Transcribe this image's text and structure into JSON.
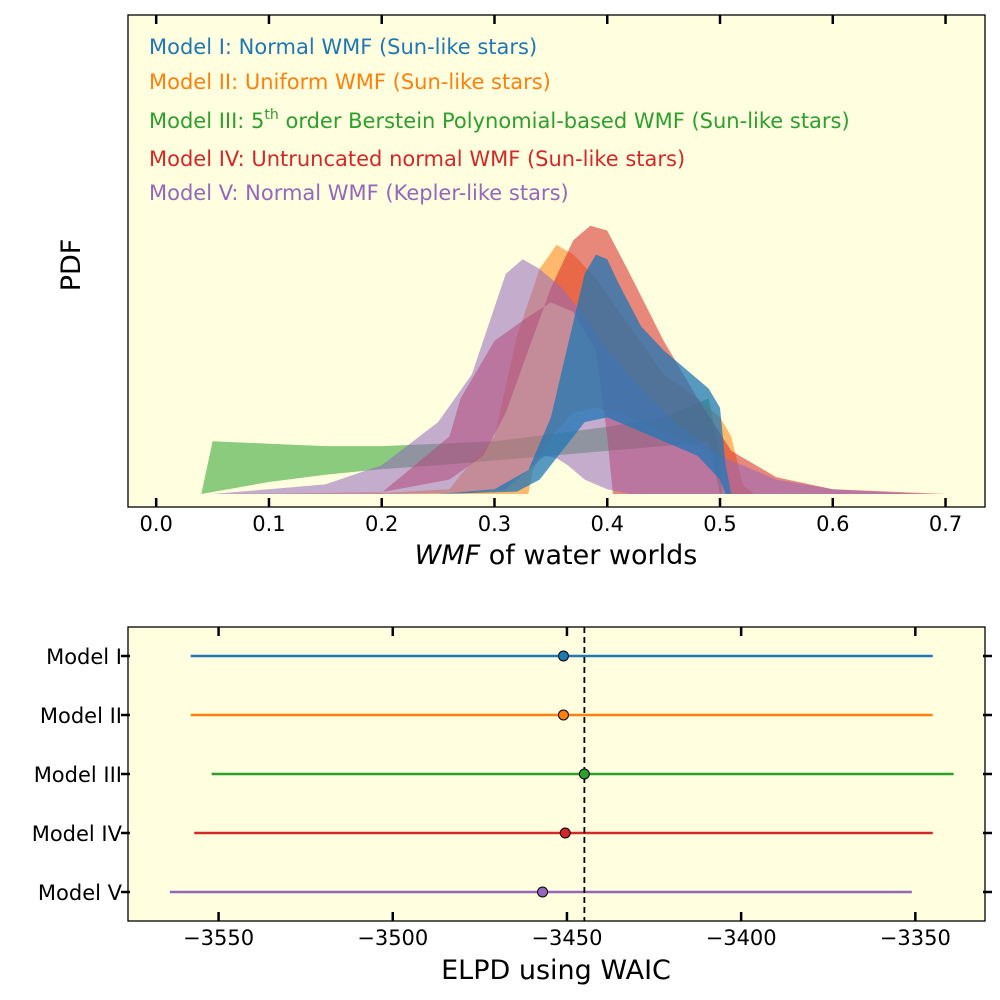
{
  "colors": {
    "background": "#ffffdf",
    "model_1": "#1f77b4",
    "model_2": "#ff7f0e",
    "model_3": "#2ca02c",
    "model_4": "#d62728",
    "model_5": "#9467bd"
  },
  "chart_data": [
    {
      "type": "area",
      "ylabel": "PDF",
      "xlabel": {
        "italic": "WMF",
        "rest": " of water worlds"
      },
      "xlim": [
        -0.025,
        0.735
      ],
      "ylim": [
        0,
        1.0
      ],
      "xticks": [
        "0.0",
        "0.1",
        "0.2",
        "0.3",
        "0.4",
        "0.5",
        "0.6",
        "0.7"
      ],
      "xtick_values": [
        0.0,
        0.1,
        0.2,
        0.3,
        0.4,
        0.5,
        0.6,
        0.7
      ],
      "legend": {
        "placement": "top-left",
        "entries": [
          {
            "text": "Model I: Normal WMF (Sun-like stars)",
            "color_key": "model_1"
          },
          {
            "text": "Model II: Uniform WMF (Sun-like stars)",
            "color_key": "model_2"
          },
          {
            "pre": "Model III: 5",
            "sup": "th",
            "post": " order Berstein Polynomial-based WMF (Sun-like stars)",
            "color_key": "model_3"
          },
          {
            "text": "Model IV: Untruncated normal WMF (Sun-like stars)",
            "color_key": "model_4"
          },
          {
            "text": "Model V: Normal WMF (Kepler-like stars)",
            "color_key": "model_5"
          }
        ]
      },
      "series": [
        {
          "color_key": "model_3",
          "opacity": 0.55,
          "upper": [
            [
              0.04,
              0.0
            ],
            [
              0.05,
              0.11
            ],
            [
              0.1,
              0.105
            ],
            [
              0.15,
              0.1
            ],
            [
              0.2,
              0.1
            ],
            [
              0.25,
              0.105
            ],
            [
              0.3,
              0.11
            ],
            [
              0.35,
              0.125
            ],
            [
              0.4,
              0.14
            ],
            [
              0.45,
              0.16
            ],
            [
              0.49,
              0.2
            ],
            [
              0.5,
              0.08
            ],
            [
              0.502,
              0.0
            ]
          ],
          "lower": [
            [
              0.04,
              0.0
            ],
            [
              0.1,
              0.025
            ],
            [
              0.15,
              0.04
            ],
            [
              0.2,
              0.052
            ],
            [
              0.25,
              0.06
            ],
            [
              0.3,
              0.07
            ],
            [
              0.35,
              0.08
            ],
            [
              0.4,
              0.09
            ],
            [
              0.45,
              0.1
            ],
            [
              0.49,
              0.11
            ],
            [
              0.5,
              0.0
            ]
          ]
        },
        {
          "color_key": "model_2",
          "opacity": 0.55,
          "upper": [
            [
              0.05,
              0.0
            ],
            [
              0.2,
              0.002
            ],
            [
              0.26,
              0.01
            ],
            [
              0.27,
              0.04
            ],
            [
              0.3,
              0.12
            ],
            [
              0.32,
              0.33
            ],
            [
              0.34,
              0.47
            ],
            [
              0.355,
              0.52
            ],
            [
              0.37,
              0.5
            ],
            [
              0.39,
              0.45
            ],
            [
              0.42,
              0.35
            ],
            [
              0.45,
              0.25
            ],
            [
              0.48,
              0.2
            ],
            [
              0.5,
              0.16
            ],
            [
              0.51,
              0.12
            ],
            [
              0.52,
              0.02
            ],
            [
              0.53,
              0.0
            ]
          ],
          "lower": [
            [
              0.05,
              0.0
            ],
            [
              0.25,
              0.0
            ],
            [
              0.3,
              0.0
            ],
            [
              0.33,
              0.0
            ],
            [
              0.334,
              0.05
            ],
            [
              0.35,
              0.12
            ],
            [
              0.37,
              0.17
            ],
            [
              0.39,
              0.18
            ],
            [
              0.42,
              0.16
            ],
            [
              0.45,
              0.13
            ],
            [
              0.48,
              0.1
            ],
            [
              0.5,
              0.08
            ],
            [
              0.51,
              0.0
            ]
          ]
        },
        {
          "color_key": "model_4",
          "opacity": 0.55,
          "upper": [
            [
              0.1,
              0.0
            ],
            [
              0.2,
              0.004
            ],
            [
              0.26,
              0.03
            ],
            [
              0.29,
              0.08
            ],
            [
              0.31,
              0.17
            ],
            [
              0.33,
              0.3
            ],
            [
              0.35,
              0.43
            ],
            [
              0.37,
              0.53
            ],
            [
              0.385,
              0.56
            ],
            [
              0.4,
              0.55
            ],
            [
              0.42,
              0.46
            ],
            [
              0.45,
              0.32
            ],
            [
              0.48,
              0.2
            ],
            [
              0.51,
              0.09
            ],
            [
              0.55,
              0.035
            ],
            [
              0.6,
              0.01
            ],
            [
              0.7,
              0.0
            ]
          ],
          "lower": [
            [
              0.1,
              0.0
            ],
            [
              0.2,
              0.003
            ],
            [
              0.26,
              0.12
            ],
            [
              0.27,
              0.2
            ],
            [
              0.3,
              0.32
            ],
            [
              0.33,
              0.37
            ],
            [
              0.35,
              0.4
            ],
            [
              0.37,
              0.38
            ],
            [
              0.39,
              0.3
            ],
            [
              0.4,
              0.12
            ],
            [
              0.405,
              0.0
            ],
            [
              0.5,
              0.0
            ],
            [
              0.7,
              0.0
            ]
          ]
        },
        {
          "color_key": "model_5",
          "opacity": 0.55,
          "upper": [
            [
              0.05,
              0.0
            ],
            [
              0.15,
              0.02
            ],
            [
              0.2,
              0.06
            ],
            [
              0.25,
              0.15
            ],
            [
              0.28,
              0.25
            ],
            [
              0.3,
              0.39
            ],
            [
              0.31,
              0.46
            ],
            [
              0.325,
              0.49
            ],
            [
              0.34,
              0.47
            ],
            [
              0.36,
              0.43
            ],
            [
              0.38,
              0.37
            ],
            [
              0.4,
              0.3
            ],
            [
              0.43,
              0.22
            ],
            [
              0.46,
              0.15
            ],
            [
              0.5,
              0.08
            ],
            [
              0.55,
              0.03
            ],
            [
              0.6,
              0.01
            ],
            [
              0.68,
              0.0
            ]
          ],
          "lower": [
            [
              0.05,
              0.0
            ],
            [
              0.2,
              0.0
            ],
            [
              0.28,
              0.002
            ],
            [
              0.31,
              0.01
            ],
            [
              0.33,
              0.05
            ],
            [
              0.345,
              0.08
            ],
            [
              0.355,
              0.075
            ],
            [
              0.365,
              0.06
            ],
            [
              0.38,
              0.03
            ],
            [
              0.4,
              0.01
            ],
            [
              0.42,
              0.0
            ],
            [
              0.68,
              0.0
            ]
          ]
        },
        {
          "color_key": "model_1",
          "opacity": 0.75,
          "upper": [
            [
              0.25,
              0.0
            ],
            [
              0.3,
              0.01
            ],
            [
              0.33,
              0.05
            ],
            [
              0.35,
              0.16
            ],
            [
              0.36,
              0.26
            ],
            [
              0.37,
              0.36
            ],
            [
              0.38,
              0.46
            ],
            [
              0.39,
              0.5
            ],
            [
              0.4,
              0.49
            ],
            [
              0.41,
              0.44
            ],
            [
              0.43,
              0.35
            ],
            [
              0.45,
              0.3
            ],
            [
              0.47,
              0.26
            ],
            [
              0.49,
              0.22
            ],
            [
              0.5,
              0.18
            ],
            [
              0.505,
              0.06
            ],
            [
              0.51,
              0.0
            ]
          ],
          "lower": [
            [
              0.25,
              0.0
            ],
            [
              0.32,
              0.005
            ],
            [
              0.34,
              0.03
            ],
            [
              0.36,
              0.09
            ],
            [
              0.38,
              0.15
            ],
            [
              0.4,
              0.16
            ],
            [
              0.42,
              0.14
            ],
            [
              0.45,
              0.11
            ],
            [
              0.48,
              0.08
            ],
            [
              0.5,
              0.03
            ],
            [
              0.505,
              0.0
            ]
          ]
        }
      ]
    },
    {
      "type": "scatter",
      "xlabel": "ELPD using WAIC",
      "xlim": [
        -3576,
        -3330
      ],
      "categories": [
        "Model I",
        "Model II",
        "Model III",
        "Model IV",
        "Model V"
      ],
      "xticks": [
        "−3550",
        "−3500",
        "−3450",
        "−3400",
        "−3350"
      ],
      "xtick_values": [
        -3550,
        -3500,
        -3450,
        -3400,
        -3350
      ],
      "reference_line": -3445,
      "points": [
        {
          "category": "Model I",
          "value": -3451,
          "low": -3558,
          "high": -3345,
          "color_key": "model_1"
        },
        {
          "category": "Model II",
          "value": -3451,
          "low": -3558,
          "high": -3345,
          "color_key": "model_2"
        },
        {
          "category": "Model III",
          "value": -3445,
          "low": -3552,
          "high": -3339,
          "color_key": "model_3"
        },
        {
          "category": "Model IV",
          "value": -3450.5,
          "low": -3557,
          "high": -3345,
          "color_key": "model_4"
        },
        {
          "category": "Model V",
          "value": -3457,
          "low": -3564,
          "high": -3351,
          "color_key": "model_5"
        }
      ]
    }
  ]
}
